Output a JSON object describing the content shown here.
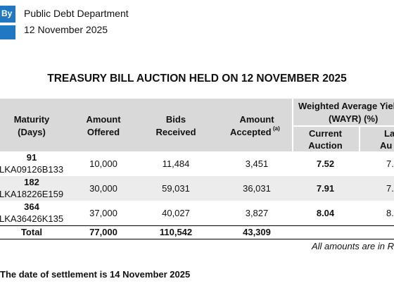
{
  "header": {
    "badge": "By",
    "department": "Public Debt Department",
    "date": "12 November 2025"
  },
  "title": "TREASURY BILL AUCTION HELD ON 12 NOVEMBER 2025",
  "table": {
    "columns": {
      "maturity": "Maturity",
      "maturity_unit": "(Days)",
      "offered_1": "Amount",
      "offered_2": "Offered",
      "bids_1": "Bids",
      "bids_2": "Received",
      "accepted_1": "Amount",
      "accepted_2": "Accepted",
      "accepted_note": "(a)",
      "wayr_1": "Weighted Average Yiel",
      "wayr_2": "(WAYR) (%)",
      "current_1": "Current",
      "current_2": "Auction",
      "last_1": "La",
      "last_2": "Au"
    },
    "rows": [
      [
        "91",
        "LKA09126B133",
        "10,000",
        "11,484",
        "3,451",
        "7.52",
        "7."
      ],
      [
        "182",
        "LKA18226E159",
        "30,000",
        "59,031",
        "36,031",
        "7.91",
        "7."
      ],
      [
        "364",
        "LKA36426K135",
        "37,000",
        "40,027",
        "3,827",
        "8.04",
        "8."
      ]
    ],
    "total": [
      "Total",
      "77,000",
      "110,542",
      "43,309"
    ]
  },
  "note": "All amounts are in R",
  "footer": "The date of settlement is 14 November 2025"
}
